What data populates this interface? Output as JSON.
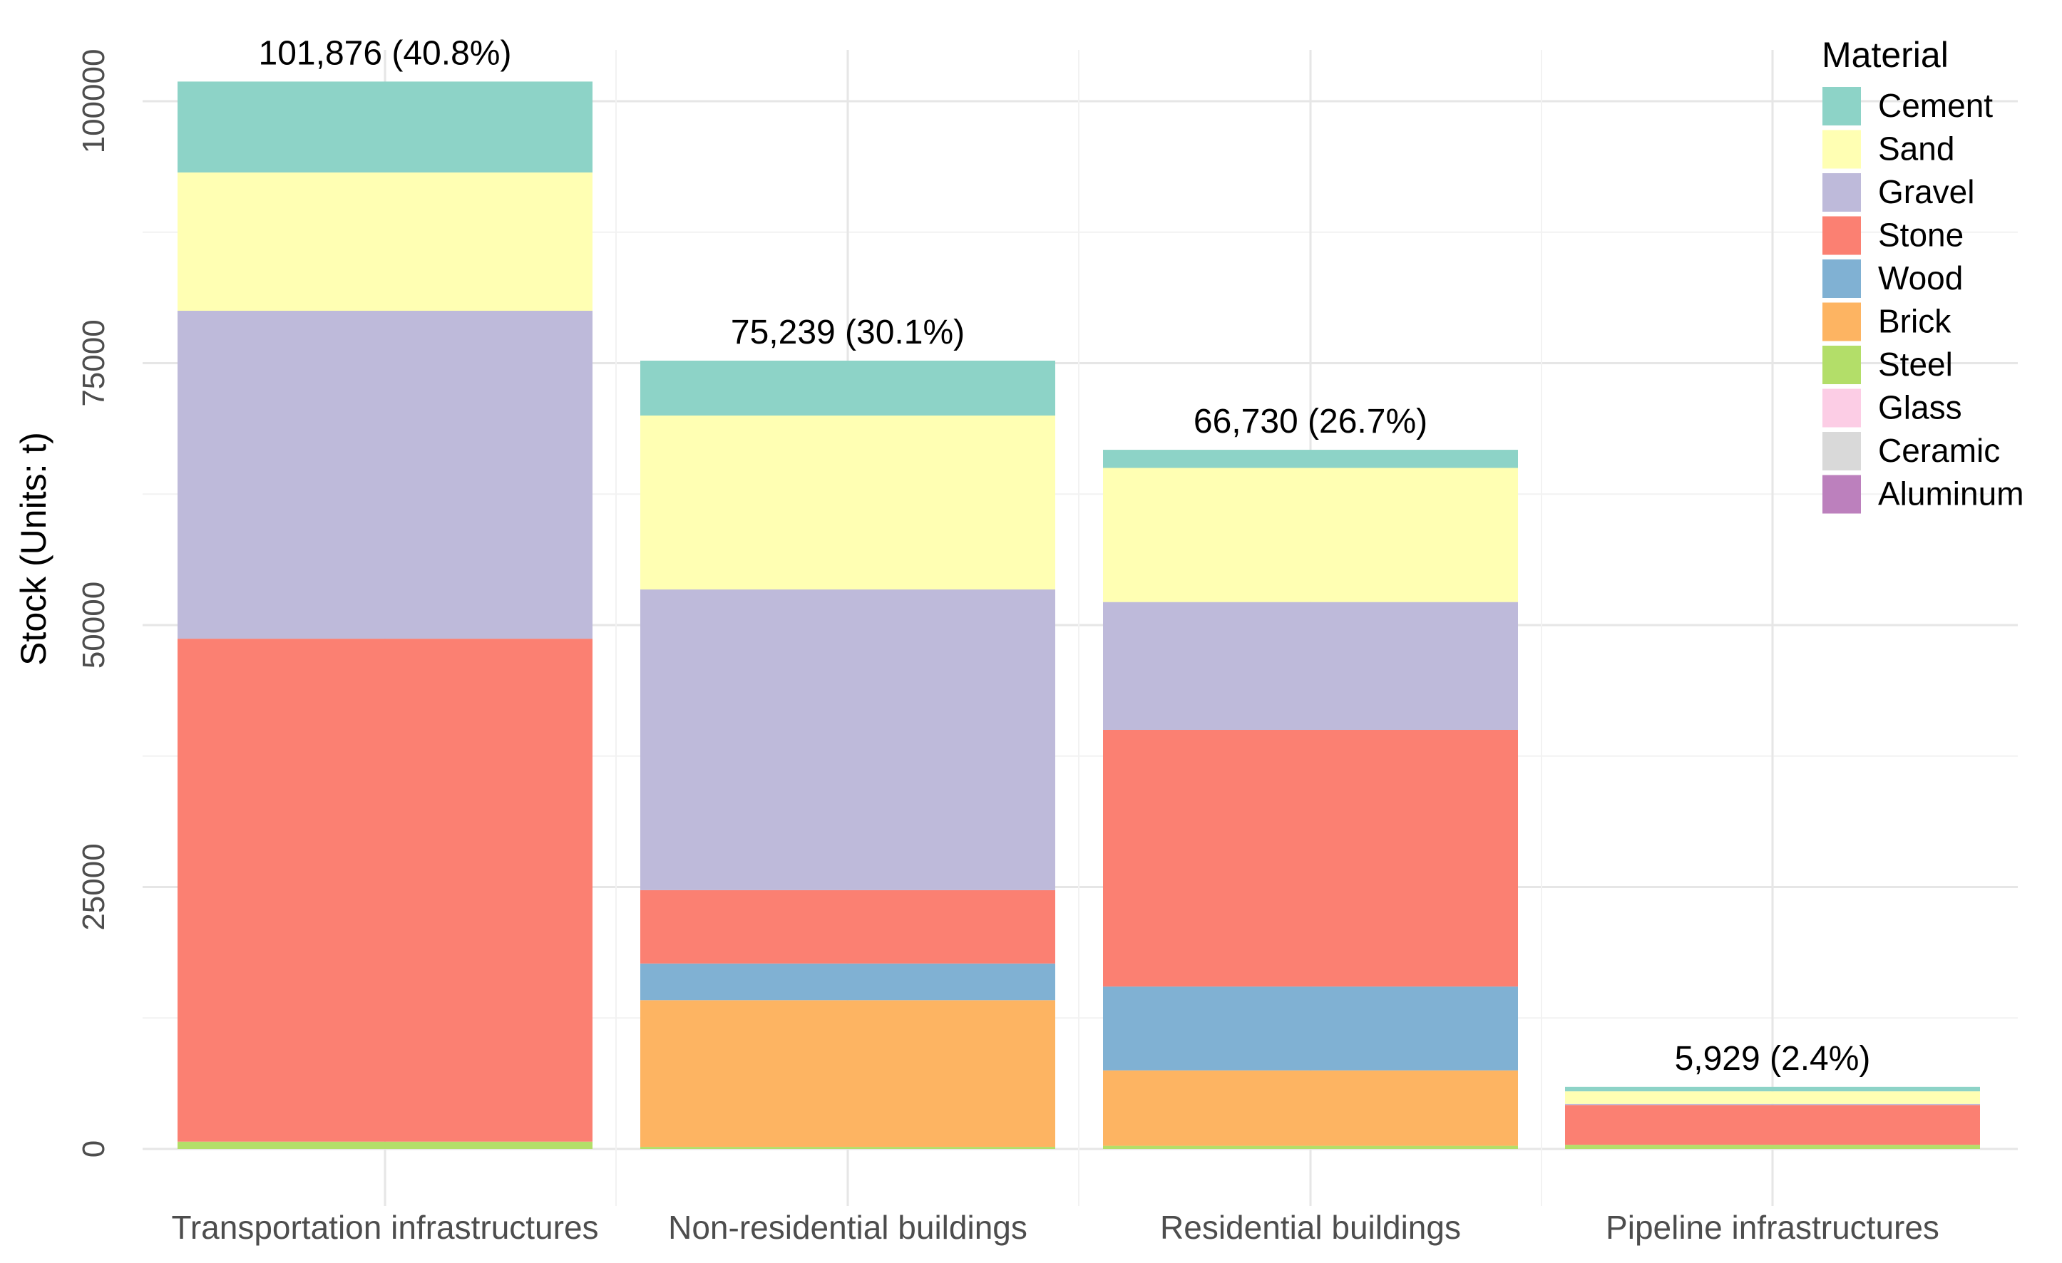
{
  "chart_data": {
    "type": "bar",
    "stacked": true,
    "title": "",
    "xlabel": "",
    "ylabel": "Stock (Units: t)",
    "ylim": [
      0,
      102000
    ],
    "y_ticks": [
      0,
      25000,
      50000,
      75000,
      100000
    ],
    "grid": true,
    "legend": {
      "title": "Material",
      "placement": "right"
    },
    "categories": [
      "Transportation infrastructures",
      "Non-residential buildings",
      "Residential buildings",
      "Pipeline infrastructures"
    ],
    "total_labels": [
      "101,876 (40.8%)",
      "75,239 (30.1%)",
      "66,730 (26.7%)",
      "5,929 (2.4%)"
    ],
    "totals": [
      101876,
      75239,
      66730,
      5929
    ],
    "series": [
      {
        "name": "Aluminum",
        "color": "#bc80bd",
        "values": [
          0,
          0,
          0,
          0
        ]
      },
      {
        "name": "Ceramic",
        "color": "#d9d9d9",
        "values": [
          0,
          0,
          0,
          0
        ]
      },
      {
        "name": "Glass",
        "color": "#fccde5",
        "values": [
          0,
          0,
          0,
          0
        ]
      },
      {
        "name": "Steel",
        "color": "#b3de69",
        "values": [
          700,
          200,
          300,
          400
        ]
      },
      {
        "name": "Brick",
        "color": "#fdb462",
        "values": [
          0,
          14000,
          7200,
          0
        ]
      },
      {
        "name": "Wood",
        "color": "#80b1d3",
        "values": [
          0,
          3500,
          8000,
          0
        ]
      },
      {
        "name": "Stone",
        "color": "#fb8072",
        "values": [
          48000,
          7000,
          24500,
          3800
        ]
      },
      {
        "name": "Gravel",
        "color": "#bebada",
        "values": [
          31300,
          28700,
          12200,
          100
        ]
      },
      {
        "name": "Sand",
        "color": "#ffffb3",
        "values": [
          13200,
          16600,
          12800,
          1200
        ]
      },
      {
        "name": "Cement",
        "color": "#8dd3c7",
        "values": [
          8676,
          5239,
          1730,
          429
        ]
      }
    ],
    "legend_order": [
      "Cement",
      "Sand",
      "Gravel",
      "Stone",
      "Wood",
      "Brick",
      "Steel",
      "Glass",
      "Ceramic",
      "Aluminum"
    ]
  }
}
